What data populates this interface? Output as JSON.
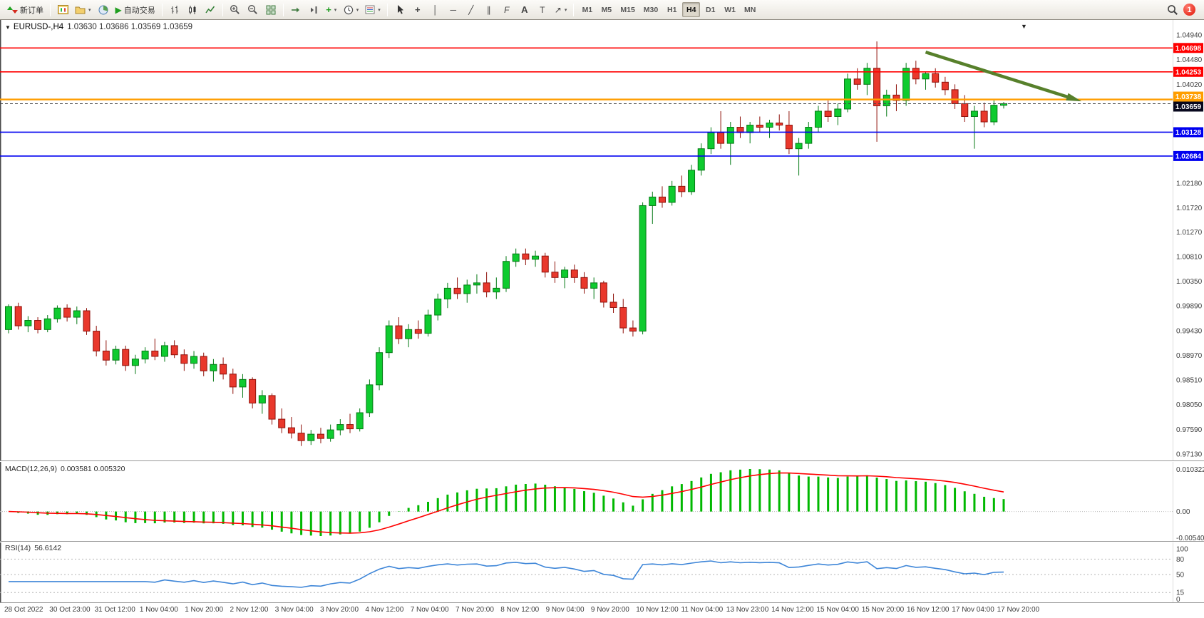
{
  "toolbar": {
    "new_order_label": "新订单",
    "autotrading_label": "自动交易",
    "timeframes": [
      "M1",
      "M5",
      "M15",
      "M30",
      "H1",
      "H4",
      "D1",
      "W1",
      "MN"
    ],
    "active_timeframe": "H4",
    "notification_badge": "1"
  },
  "icons": {
    "caret_down": "▼",
    "caret_small": "▾",
    "play": "▶",
    "vline": "│",
    "hline": "─",
    "trendline": "╱",
    "channel": "∥",
    "fibonacci": "F",
    "text": "A",
    "label": "T",
    "crosshair": "+",
    "indicator_plus": "+",
    "arrow_object": "↗"
  },
  "chart": {
    "symbol_period": "EURUSD-,H4",
    "ohlc": "1.03630 1.03686 1.03569 1.03659"
  },
  "macd": {
    "name": "MACD(12,26,9)",
    "values": "0.003581 0.005320"
  },
  "rsi": {
    "name": "RSI(14)",
    "value": "56.6142"
  },
  "chart_data": {
    "type": "candlestick",
    "symbol": "EURUSD-",
    "timeframe": "H4",
    "up_color": "#0ECB2F",
    "up_stroke": "#067A16",
    "down_color": "#E9382C",
    "down_stroke": "#8F120B",
    "y_axis": {
      "visible_range": [
        0.9705,
        1.0518
      ],
      "ticks": [
        "1.04940",
        "1.04480",
        "1.04020",
        "1.03560",
        "1.03100",
        "1.02640",
        "1.02180",
        "1.01720",
        "1.01270",
        "1.00810",
        "1.00350",
        "0.99890",
        "0.99430",
        "0.98970",
        "0.98510",
        "0.98050",
        "0.97590",
        "0.97130"
      ]
    },
    "x_axis": {
      "labels": [
        "28 Oct 2022",
        "30 Oct 23:00",
        "31 Oct 12:00",
        "1 Nov 04:00",
        "1 Nov 20:00",
        "2 Nov 12:00",
        "3 Nov 04:00",
        "3 Nov 20:00",
        "4 Nov 12:00",
        "7 Nov 04:00",
        "7 Nov 20:00",
        "8 Nov 12:00",
        "9 Nov 04:00",
        "9 Nov 20:00",
        "10 Nov 12:00",
        "11 Nov 04:00",
        "13 Nov 23:00",
        "14 Nov 12:00",
        "15 Nov 04:00",
        "15 Nov 20:00",
        "16 Nov 12:00",
        "17 Nov 04:00",
        "17 Nov 20:00"
      ]
    },
    "candles": [
      [
        0.9945,
        0.9992,
        0.9938,
        0.9988
      ],
      [
        0.9988,
        0.9995,
        0.9945,
        0.9952
      ],
      [
        0.9952,
        0.997,
        0.994,
        0.9962
      ],
      [
        0.9962,
        0.9968,
        0.9938,
        0.9945
      ],
      [
        0.9945,
        0.9972,
        0.994,
        0.9965
      ],
      [
        0.9965,
        0.999,
        0.9958,
        0.9985
      ],
      [
        0.9985,
        0.9992,
        0.996,
        0.9968
      ],
      [
        0.9968,
        0.9988,
        0.9955,
        0.998
      ],
      [
        0.998,
        0.9985,
        0.9935,
        0.9942
      ],
      [
        0.9942,
        0.9952,
        0.9895,
        0.9905
      ],
      [
        0.9905,
        0.9925,
        0.9878,
        0.9888
      ],
      [
        0.9888,
        0.9915,
        0.988,
        0.9908
      ],
      [
        0.9908,
        0.9915,
        0.9868,
        0.9878
      ],
      [
        0.9878,
        0.9898,
        0.9862,
        0.989
      ],
      [
        0.989,
        0.9912,
        0.9882,
        0.9905
      ],
      [
        0.9905,
        0.9928,
        0.9888,
        0.9895
      ],
      [
        0.9895,
        0.9922,
        0.9885,
        0.9915
      ],
      [
        0.9915,
        0.9925,
        0.9892,
        0.9898
      ],
      [
        0.9898,
        0.9908,
        0.9868,
        0.9882
      ],
      [
        0.9882,
        0.9905,
        0.9872,
        0.9895
      ],
      [
        0.9895,
        0.9902,
        0.9858,
        0.9868
      ],
      [
        0.9868,
        0.989,
        0.9848,
        0.988
      ],
      [
        0.988,
        0.9893,
        0.9852,
        0.9862
      ],
      [
        0.9862,
        0.9872,
        0.9825,
        0.9838
      ],
      [
        0.9838,
        0.9862,
        0.9818,
        0.9852
      ],
      [
        0.9852,
        0.9856,
        0.9798,
        0.9808
      ],
      [
        0.9808,
        0.9832,
        0.9788,
        0.9822
      ],
      [
        0.9822,
        0.9826,
        0.9768,
        0.9778
      ],
      [
        0.9778,
        0.9798,
        0.9752,
        0.9762
      ],
      [
        0.9762,
        0.9782,
        0.9742,
        0.9752
      ],
      [
        0.9752,
        0.9768,
        0.9728,
        0.9738
      ],
      [
        0.9738,
        0.9758,
        0.973,
        0.975
      ],
      [
        0.975,
        0.9762,
        0.9733,
        0.9742
      ],
      [
        0.9742,
        0.9768,
        0.9736,
        0.9758
      ],
      [
        0.9758,
        0.9778,
        0.9748,
        0.9768
      ],
      [
        0.9768,
        0.9788,
        0.9752,
        0.976
      ],
      [
        0.976,
        0.9798,
        0.9755,
        0.979
      ],
      [
        0.979,
        0.9852,
        0.9782,
        0.9842
      ],
      [
        0.9842,
        0.9912,
        0.9832,
        0.9902
      ],
      [
        0.9902,
        0.9962,
        0.9892,
        0.9952
      ],
      [
        0.9952,
        0.9968,
        0.9918,
        0.9928
      ],
      [
        0.9928,
        0.9955,
        0.9912,
        0.9945
      ],
      [
        0.9945,
        0.9962,
        0.9928,
        0.9938
      ],
      [
        0.9938,
        0.9982,
        0.9932,
        0.9972
      ],
      [
        0.9972,
        1.0012,
        0.9962,
        1.0002
      ],
      [
        1.0002,
        1.0032,
        0.9985,
        1.0022
      ],
      [
        1.0022,
        1.0042,
        1.0002,
        1.0012
      ],
      [
        1.0012,
        1.0038,
        0.9995,
        1.0028
      ],
      [
        1.0028,
        1.0048,
        1.0012,
        1.0032
      ],
      [
        1.0032,
        1.0052,
        1.0005,
        1.0015
      ],
      [
        1.0015,
        1.0042,
        1.0002,
        1.0022
      ],
      [
        1.0022,
        1.0082,
        1.0015,
        1.0072
      ],
      [
        1.0072,
        1.0096,
        1.0062,
        1.0086
      ],
      [
        1.0086,
        1.0096,
        1.0065,
        1.0076
      ],
      [
        1.0076,
        1.0092,
        1.0062,
        1.0082
      ],
      [
        1.0082,
        1.0088,
        1.0042,
        1.0052
      ],
      [
        1.0052,
        1.0072,
        1.0032,
        1.0042
      ],
      [
        1.0042,
        1.0062,
        1.0022,
        1.0056
      ],
      [
        1.0056,
        1.0066,
        1.0032,
        1.0042
      ],
      [
        1.0042,
        1.0052,
        1.0012,
        1.0022
      ],
      [
        1.0022,
        1.0042,
        1.0002,
        1.0032
      ],
      [
        1.0032,
        1.0036,
        0.9986,
        0.9996
      ],
      [
        0.9996,
        1.0012,
        0.9976,
        0.9986
      ],
      [
        0.9986,
        1.0002,
        0.9938,
        0.9948
      ],
      [
        0.9948,
        0.9962,
        0.9932,
        0.9942
      ],
      [
        0.9942,
        1.0182,
        0.9936,
        1.0176
      ],
      [
        1.0176,
        1.0202,
        1.0142,
        1.0192
      ],
      [
        1.0192,
        1.0212,
        1.0172,
        1.0182
      ],
      [
        1.0182,
        1.0222,
        1.0176,
        1.0212
      ],
      [
        1.0212,
        1.0232,
        1.0192,
        1.0202
      ],
      [
        1.0202,
        1.0252,
        1.0196,
        1.0242
      ],
      [
        1.0242,
        1.0292,
        1.0232,
        1.0282
      ],
      [
        1.0282,
        1.0322,
        1.0272,
        1.0312
      ],
      [
        1.0312,
        1.0352,
        1.0282,
        1.0292
      ],
      [
        1.0292,
        1.0332,
        1.0252,
        1.0322
      ],
      [
        1.0322,
        1.0342,
        1.0302,
        1.0312
      ],
      [
        1.0312,
        1.0332,
        1.0292,
        1.0326
      ],
      [
        1.0326,
        1.0342,
        1.0312,
        1.0322
      ],
      [
        1.0322,
        1.0336,
        1.0302,
        1.033
      ],
      [
        1.033,
        1.0346,
        1.0316,
        1.0326
      ],
      [
        1.0326,
        1.0352,
        1.0272,
        1.0282
      ],
      [
        1.0282,
        1.0302,
        1.0232,
        1.0292
      ],
      [
        1.0292,
        1.0332,
        1.0282,
        1.0322
      ],
      [
        1.0322,
        1.0362,
        1.0312,
        1.0352
      ],
      [
        1.0352,
        1.0372,
        1.0332,
        1.0342
      ],
      [
        1.0342,
        1.0366,
        1.0326,
        1.0356
      ],
      [
        1.0356,
        1.0422,
        1.035,
        1.0412
      ],
      [
        1.0412,
        1.0432,
        1.0392,
        1.0402
      ],
      [
        1.0402,
        1.0442,
        1.0382,
        1.0432
      ],
      [
        1.0432,
        1.0482,
        1.0295,
        1.0362
      ],
      [
        1.0362,
        1.0392,
        1.0342,
        1.0382
      ],
      [
        1.0382,
        1.0402,
        1.0352,
        1.0372
      ],
      [
        1.0372,
        1.0442,
        1.0362,
        1.0432
      ],
      [
        1.0432,
        1.0446,
        1.0402,
        1.0412
      ],
      [
        1.0412,
        1.0426,
        1.0392,
        1.0422
      ],
      [
        1.0422,
        1.0432,
        1.0396,
        1.0406
      ],
      [
        1.0406,
        1.0416,
        1.0382,
        1.0392
      ],
      [
        1.0392,
        1.0402,
        1.0356,
        1.0366
      ],
      [
        1.0366,
        1.0382,
        1.0332,
        1.0342
      ],
      [
        1.0342,
        1.0362,
        1.0282,
        1.0352
      ],
      [
        1.0352,
        1.0368,
        1.0322,
        1.0332
      ],
      [
        1.0332,
        1.0372,
        1.0326,
        1.0363
      ],
      [
        1.0363,
        1.0369,
        1.0357,
        1.0366
      ]
    ],
    "overlays": {
      "levels": [
        {
          "price": 1.04698,
          "label": "1.04698",
          "color": "#FF0000",
          "width": 1.6
        },
        {
          "price": 1.04253,
          "label": "1.04253",
          "color": "#FF0000",
          "width": 1.6
        },
        {
          "price": 1.03738,
          "label": "1.03738",
          "color": "#FF9E00",
          "width": 2.4,
          "tag_shift": -4
        },
        {
          "price": 1.03128,
          "label": "1.03128",
          "color": "#0000F0",
          "width": 1.6
        },
        {
          "price": 1.02684,
          "label": "1.02684",
          "color": "#0000F0",
          "width": 1.6
        }
      ],
      "current_price": {
        "value": 1.03659,
        "label": "1.03659",
        "tag_color": "#07071d",
        "tag_shift": 4
      },
      "trend_arrow": {
        "color": "#57802B",
        "from": {
          "bar": 94,
          "price": 1.0462
        },
        "to": {
          "bar": 109,
          "price": 1.0376
        }
      }
    },
    "indicators": [
      {
        "name": "MACD",
        "params": "12,26,9",
        "axis_labels": [
          "0.010322",
          "0.00",
          "-0.005408"
        ],
        "histogram_color": "#00B800",
        "signal_color": "#FF0000"
      },
      {
        "name": "RSI",
        "params": "14",
        "axis_labels": [
          "100",
          "80",
          "50",
          "15",
          "0"
        ],
        "levels": [
          80,
          50,
          15
        ],
        "line_color": "#3E86D8"
      }
    ]
  }
}
